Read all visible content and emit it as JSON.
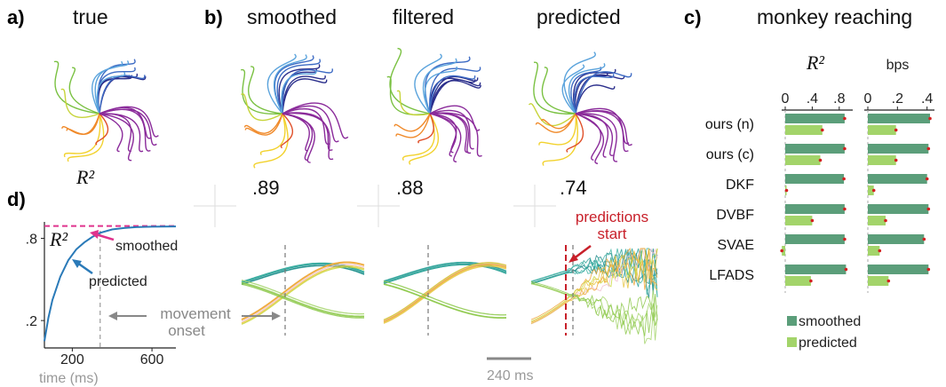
{
  "panels": {
    "a": {
      "letter": "a)",
      "title": "true",
      "r2_label": "R²"
    },
    "b": {
      "letter": "b)",
      "titles": [
        "smoothed",
        "filtered",
        "predicted"
      ],
      "r2_values": [
        ".89",
        ".88",
        ".74"
      ]
    },
    "c": {
      "letter": "c)",
      "title": "monkey reaching"
    },
    "d": {
      "letter": "d)"
    }
  },
  "annotations": {
    "predictions_start": "predictions start",
    "movement_onset": "movement onset",
    "scale_bar": "240 ms"
  },
  "colors": {
    "smoothed_bar": "#5b9e7a",
    "predicted_bar": "#a3d46a",
    "smoothed_curve": "#e0338d",
    "predicted_curve": "#2a7ab8",
    "predictions_start": "#c8202a",
    "reach_palette": [
      "#2b2f8c",
      "#3d6bc4",
      "#5aa3dc",
      "#7ac142",
      "#c7d43a",
      "#f2d22e",
      "#f08a2a",
      "#e0502a",
      "#8a2a9a"
    ]
  },
  "chart_data": [
    {
      "type": "line",
      "panel": "d",
      "ylabel": "R²",
      "xlabel": "time (ms)",
      "xlim": [
        60,
        720
      ],
      "ylim": [
        0,
        0.92
      ],
      "xticks": [
        200,
        600
      ],
      "yticks": [
        0.2,
        0.8
      ],
      "ytick_labels": [
        ".2",
        ".8"
      ],
      "movement_onset_ms": 340,
      "series": [
        {
          "name": "smoothed",
          "x": [
            60,
            720
          ],
          "y": [
            0.89,
            0.89
          ]
        },
        {
          "name": "predicted",
          "x": [
            60,
            80,
            100,
            140,
            180,
            220,
            260,
            300,
            340,
            400,
            460,
            520,
            600,
            720
          ],
          "y": [
            0.05,
            0.22,
            0.35,
            0.52,
            0.64,
            0.72,
            0.77,
            0.81,
            0.84,
            0.865,
            0.875,
            0.882,
            0.885,
            0.887
          ]
        }
      ]
    },
    {
      "type": "bar",
      "panel": "c",
      "title": "R²",
      "orientation": "horizontal",
      "xlim": [
        0,
        1
      ],
      "xticks": [
        0,
        0.4,
        0.8
      ],
      "xtick_labels": [
        "0",
        ".4",
        ".8"
      ],
      "categories": [
        "ours (n)",
        "ours (c)",
        "DKF",
        "DVBF",
        "SVAE",
        "LFADS"
      ],
      "series": [
        {
          "name": "smoothed",
          "values": [
            0.88,
            0.88,
            0.87,
            0.88,
            0.88,
            0.9
          ]
        },
        {
          "name": "predicted",
          "values": [
            0.55,
            0.52,
            0.02,
            0.4,
            -0.05,
            0.38
          ]
        }
      ]
    },
    {
      "type": "bar",
      "panel": "c",
      "title": "bps",
      "orientation": "horizontal",
      "xlim": [
        0,
        0.45
      ],
      "xticks": [
        0,
        0.2,
        0.4
      ],
      "xtick_labels": [
        "0",
        ".2",
        ".4"
      ],
      "categories": [
        "ours (n)",
        "ours (c)",
        "DKF",
        "DVBF",
        "SVAE",
        "LFADS"
      ],
      "series": [
        {
          "name": "smoothed",
          "values": [
            0.42,
            0.41,
            0.4,
            0.41,
            0.38,
            0.41
          ]
        },
        {
          "name": "predicted",
          "values": [
            0.19,
            0.19,
            0.04,
            0.12,
            0.08,
            0.14
          ]
        }
      ]
    }
  ],
  "legend": {
    "items": [
      "smoothed",
      "predicted"
    ]
  }
}
